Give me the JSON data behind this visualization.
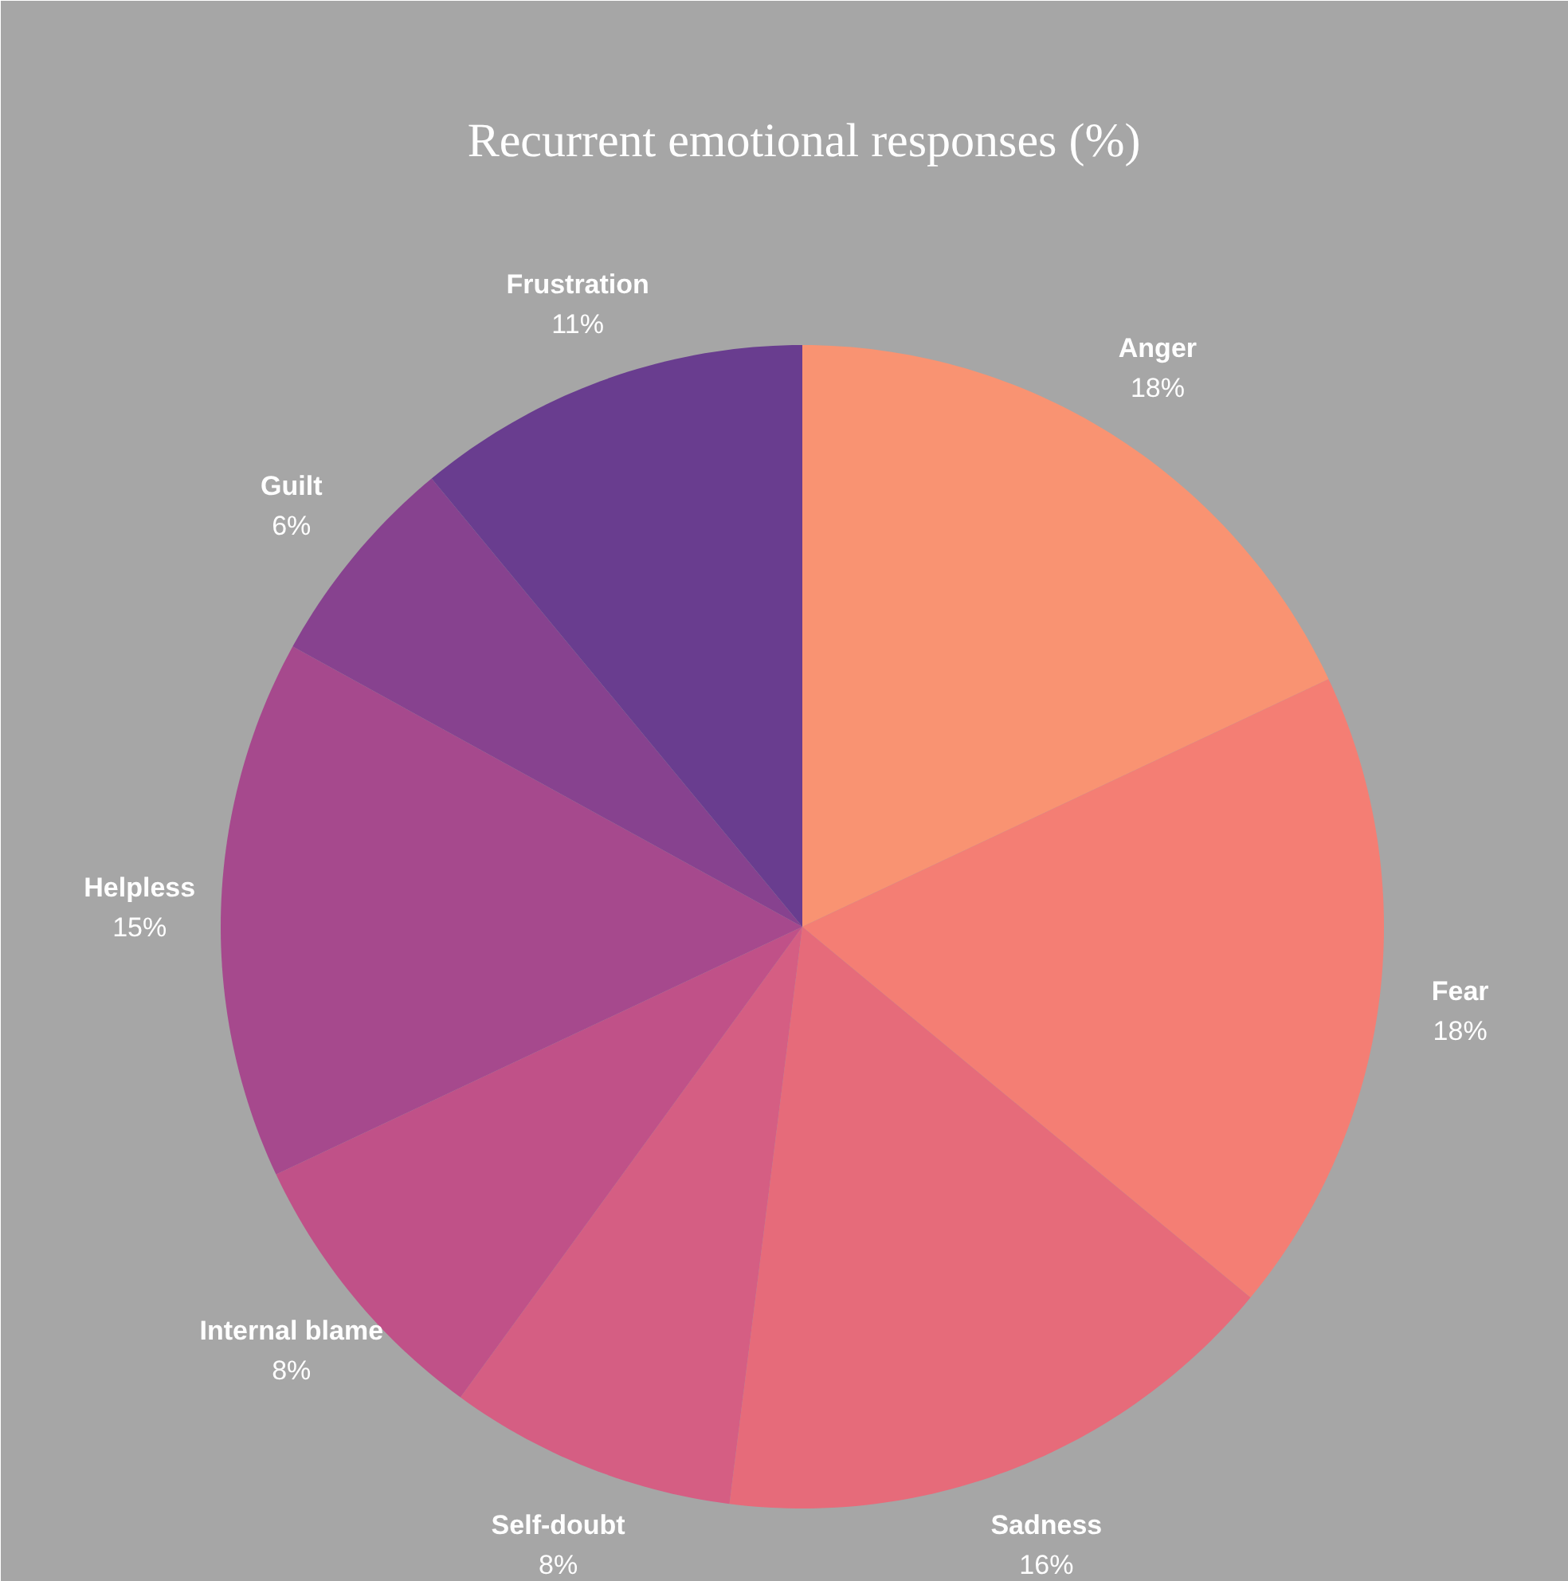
{
  "chart_data": {
    "type": "pie",
    "title": "Recurrent emotional responses (%)",
    "categories": [
      "Anger",
      "Fear",
      "Sadness",
      "Self-doubt",
      "Internal blame",
      "Helpless",
      "Guilt",
      "Frustration"
    ],
    "values": [
      18,
      18,
      16,
      8,
      8,
      15,
      6,
      11
    ],
    "colors": [
      "#f99372",
      "#f47e74",
      "#e66b7a",
      "#d55e83",
      "#c05188",
      "#a6498d",
      "#87428f",
      "#693d8f"
    ],
    "value_labels": [
      "18%",
      "18%",
      "16%",
      "8%",
      "8%",
      "15%",
      "6%",
      "11%"
    ]
  }
}
